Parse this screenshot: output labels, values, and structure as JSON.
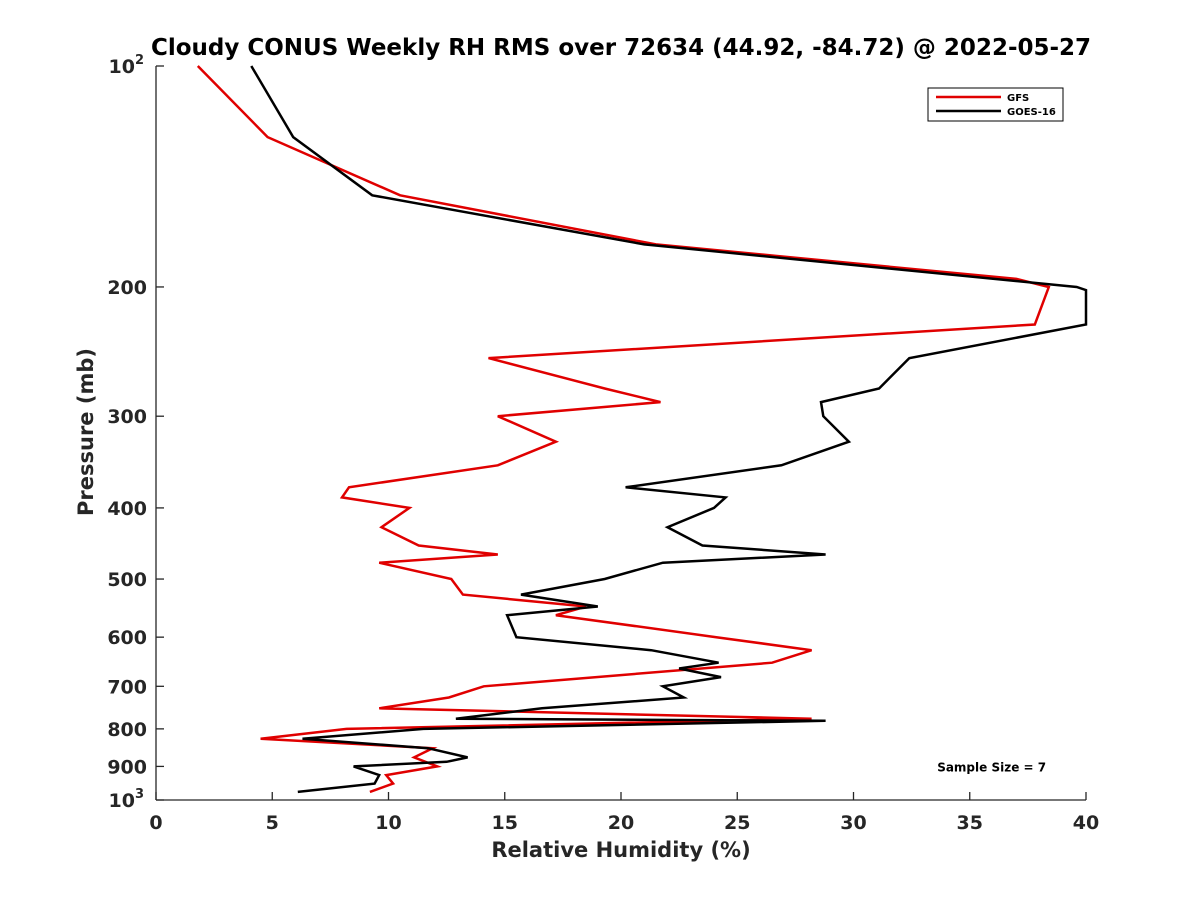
{
  "chart_data": {
    "type": "line",
    "title": "Cloudy CONUS Weekly RH RMS over 72634 (44.92, -84.72) @ 2022-05-27",
    "xlabel": "Relative Humidity (%)",
    "ylabel": "Pressure (mb)",
    "xlim": [
      0,
      40
    ],
    "ylim": [
      100,
      1000
    ],
    "y_scale": "log",
    "y_reversed": true,
    "grid": false,
    "legend_position": "top-right",
    "x_ticks": [
      "0",
      "5",
      "10",
      "15",
      "20",
      "25",
      "30",
      "35",
      "40"
    ],
    "y_ticks": [
      {
        "value": 100,
        "base": "10",
        "exp": "2"
      },
      {
        "value": 200,
        "label": "200"
      },
      {
        "value": 300,
        "label": "300"
      },
      {
        "value": 400,
        "label": "400"
      },
      {
        "value": 500,
        "label": "500"
      },
      {
        "value": 600,
        "label": "600"
      },
      {
        "value": 700,
        "label": "700"
      },
      {
        "value": 800,
        "label": "800"
      },
      {
        "value": 900,
        "label": "900"
      },
      {
        "value": 1000,
        "base": "10",
        "exp": "3"
      }
    ],
    "series": [
      {
        "name": "GFS",
        "color": "#e00000",
        "points": [
          [
            1.8,
            100
          ],
          [
            4.8,
            125
          ],
          [
            10.5,
            150
          ],
          [
            21.5,
            175
          ],
          [
            37.0,
            195
          ],
          [
            38.4,
            200
          ],
          [
            37.8,
            225
          ],
          [
            14.3,
            250
          ],
          [
            19.3,
            275
          ],
          [
            21.7,
            287
          ],
          [
            14.7,
            300
          ],
          [
            17.2,
            325
          ],
          [
            14.7,
            350
          ],
          [
            8.3,
            375
          ],
          [
            8.0,
            387
          ],
          [
            10.9,
            400
          ],
          [
            9.7,
            425
          ],
          [
            11.3,
            450
          ],
          [
            14.7,
            463
          ],
          [
            9.6,
            475
          ],
          [
            12.7,
            500
          ],
          [
            13.2,
            525
          ],
          [
            18.5,
            545
          ],
          [
            17.2,
            560
          ],
          [
            24.1,
            600
          ],
          [
            28.2,
            625
          ],
          [
            26.5,
            650
          ],
          [
            14.1,
            700
          ],
          [
            12.6,
            725
          ],
          [
            9.6,
            750
          ],
          [
            28.2,
            775
          ],
          [
            8.2,
            800
          ],
          [
            4.5,
            825
          ],
          [
            11.9,
            850
          ],
          [
            11.1,
            875
          ],
          [
            12.1,
            900
          ],
          [
            9.9,
            925
          ],
          [
            10.2,
            950
          ],
          [
            9.2,
            975
          ]
        ]
      },
      {
        "name": "GOES-16",
        "color": "#000000",
        "points": [
          [
            4.1,
            100
          ],
          [
            5.9,
            125
          ],
          [
            9.3,
            150
          ],
          [
            21.0,
            175
          ],
          [
            39.6,
            200
          ],
          [
            40.0,
            202
          ],
          [
            40.0,
            225
          ],
          [
            32.4,
            250
          ],
          [
            31.1,
            275
          ],
          [
            28.6,
            287
          ],
          [
            28.7,
            300
          ],
          [
            29.8,
            325
          ],
          [
            26.9,
            350
          ],
          [
            20.2,
            375
          ],
          [
            24.5,
            387
          ],
          [
            24.0,
            400
          ],
          [
            22.0,
            425
          ],
          [
            23.5,
            450
          ],
          [
            28.8,
            463
          ],
          [
            21.8,
            475
          ],
          [
            19.3,
            500
          ],
          [
            15.7,
            525
          ],
          [
            19.0,
            545
          ],
          [
            15.1,
            560
          ],
          [
            15.5,
            600
          ],
          [
            21.3,
            625
          ],
          [
            24.2,
            650
          ],
          [
            22.5,
            662
          ],
          [
            24.3,
            680
          ],
          [
            21.8,
            700
          ],
          [
            22.7,
            725
          ],
          [
            16.6,
            750
          ],
          [
            12.9,
            775
          ],
          [
            28.8,
            780
          ],
          [
            11.5,
            800
          ],
          [
            6.3,
            825
          ],
          [
            11.7,
            850
          ],
          [
            13.4,
            875
          ],
          [
            12.5,
            887
          ],
          [
            8.5,
            900
          ],
          [
            9.6,
            925
          ],
          [
            9.4,
            950
          ],
          [
            6.1,
            975
          ]
        ]
      }
    ],
    "annotations": [
      {
        "text": "Sample Size = 7",
        "x": 33.6,
        "y": 900
      }
    ]
  }
}
